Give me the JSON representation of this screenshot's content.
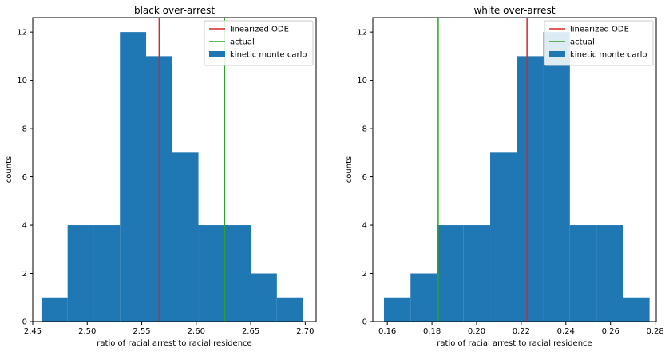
{
  "chart_data": [
    {
      "type": "bar",
      "title": "black over-arrest",
      "xlabel": "ratio of racial arrest to racial residence",
      "ylabel": "counts",
      "xlim": [
        2.45,
        2.71
      ],
      "ylim": [
        0,
        12.6
      ],
      "xticks": [
        2.45,
        2.5,
        2.55,
        2.6,
        2.65,
        2.7
      ],
      "xtick_labels": [
        "2.45",
        "2.50",
        "2.55",
        "2.60",
        "2.65",
        "2.70"
      ],
      "yticks": [
        0,
        2,
        4,
        6,
        8,
        10,
        12
      ],
      "ytick_labels": [
        "0",
        "2",
        "4",
        "6",
        "8",
        "10",
        "12"
      ],
      "bin_edges": [
        2.458,
        2.482,
        2.506,
        2.53,
        2.554,
        2.578,
        2.602,
        2.626,
        2.65,
        2.674,
        2.698
      ],
      "counts": [
        1,
        4,
        4,
        12,
        11,
        7,
        4,
        4,
        2,
        1
      ],
      "vlines": [
        {
          "name": "linearized ODE",
          "x": 2.566,
          "color": "#d62728"
        },
        {
          "name": "actual",
          "x": 2.626,
          "color": "#2ca02c"
        }
      ],
      "hist_name": "kinetic monte carlo",
      "hist_color": "#1f77b4",
      "legend_placement": "upper right"
    },
    {
      "type": "bar",
      "title": "white over-arrest",
      "xlabel": "ratio of racial arrest to racial residence",
      "ylabel": "counts",
      "xlim": [
        0.1535,
        0.2805
      ],
      "ylim": [
        0,
        12.6
      ],
      "xticks": [
        0.16,
        0.18,
        0.2,
        0.22,
        0.24,
        0.26,
        0.28
      ],
      "xtick_labels": [
        "0.16",
        "0.18",
        "0.20",
        "0.22",
        "0.24",
        "0.26",
        "0.28"
      ],
      "yticks": [
        0,
        2,
        4,
        6,
        8,
        10,
        12
      ],
      "ytick_labels": [
        "0",
        "2",
        "4",
        "6",
        "8",
        "10",
        "12"
      ],
      "bin_edges": [
        0.1585,
        0.1704,
        0.1823,
        0.1942,
        0.2061,
        0.218,
        0.2299,
        0.2418,
        0.2537,
        0.2656,
        0.2775
      ],
      "counts": [
        1,
        2,
        4,
        4,
        7,
        11,
        12,
        4,
        4,
        1
      ],
      "vlines": [
        {
          "name": "linearized ODE",
          "x": 0.2226,
          "color": "#d62728"
        },
        {
          "name": "actual",
          "x": 0.1828,
          "color": "#2ca02c"
        }
      ],
      "hist_name": "kinetic monte carlo",
      "hist_color": "#1f77b4",
      "legend_placement": "upper right"
    }
  ]
}
